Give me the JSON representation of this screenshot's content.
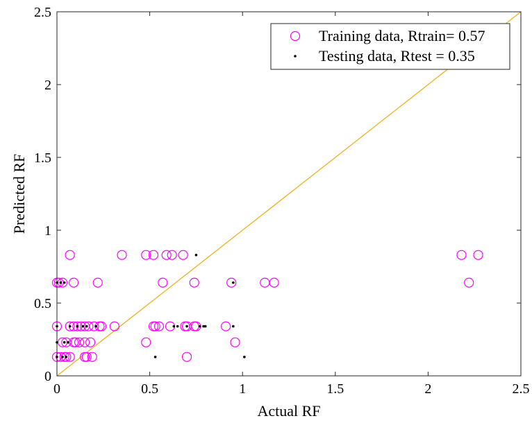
{
  "chart_data": {
    "type": "scatter",
    "title": "",
    "xlabel": "Actual RF",
    "ylabel": "Predicted RF",
    "xlim": [
      0,
      2.5
    ],
    "ylim": [
      0,
      2.5
    ],
    "xticks": [
      "0",
      "0.5",
      "1",
      "1.5",
      "2",
      "2.5"
    ],
    "yticks": [
      "0",
      "0.5",
      "1",
      "1.5",
      "2",
      "2.5"
    ],
    "grid": false,
    "legend_position": "top-right",
    "reference_line": {
      "from": [
        0,
        0
      ],
      "to": [
        2.5,
        2.5
      ],
      "color": "#EDB120"
    },
    "series": [
      {
        "name": "Training data, Rtrain= 0.57",
        "marker": "circle",
        "color": "#FF00FF",
        "points": [
          [
            0.0,
            0.64
          ],
          [
            0.01,
            0.64
          ],
          [
            0.03,
            0.64
          ],
          [
            0.09,
            0.64
          ],
          [
            0.22,
            0.64
          ],
          [
            0.57,
            0.64
          ],
          [
            0.74,
            0.64
          ],
          [
            0.94,
            0.64
          ],
          [
            1.12,
            0.64
          ],
          [
            1.17,
            0.64
          ],
          [
            2.22,
            0.64
          ],
          [
            0.07,
            0.83
          ],
          [
            0.35,
            0.83
          ],
          [
            0.48,
            0.83
          ],
          [
            0.52,
            0.83
          ],
          [
            0.59,
            0.83
          ],
          [
            0.62,
            0.83
          ],
          [
            0.68,
            0.83
          ],
          [
            2.18,
            0.83
          ],
          [
            2.27,
            0.83
          ],
          [
            0.0,
            0.34
          ],
          [
            0.07,
            0.34
          ],
          [
            0.09,
            0.34
          ],
          [
            0.11,
            0.34
          ],
          [
            0.13,
            0.34
          ],
          [
            0.15,
            0.34
          ],
          [
            0.17,
            0.34
          ],
          [
            0.2,
            0.34
          ],
          [
            0.23,
            0.34
          ],
          [
            0.24,
            0.34
          ],
          [
            0.31,
            0.34
          ],
          [
            0.52,
            0.34
          ],
          [
            0.53,
            0.34
          ],
          [
            0.55,
            0.34
          ],
          [
            0.61,
            0.34
          ],
          [
            0.69,
            0.34
          ],
          [
            0.7,
            0.34
          ],
          [
            0.74,
            0.34
          ],
          [
            0.75,
            0.34
          ],
          [
            0.91,
            0.34
          ],
          [
            0.03,
            0.23
          ],
          [
            0.05,
            0.23
          ],
          [
            0.09,
            0.23
          ],
          [
            0.1,
            0.23
          ],
          [
            0.12,
            0.23
          ],
          [
            0.15,
            0.23
          ],
          [
            0.18,
            0.23
          ],
          [
            0.48,
            0.23
          ],
          [
            0.96,
            0.23
          ],
          [
            0.0,
            0.13
          ],
          [
            0.02,
            0.13
          ],
          [
            0.04,
            0.13
          ],
          [
            0.05,
            0.13
          ],
          [
            0.07,
            0.13
          ],
          [
            0.15,
            0.13
          ],
          [
            0.16,
            0.13
          ],
          [
            0.19,
            0.13
          ],
          [
            0.7,
            0.13
          ]
        ]
      },
      {
        "name": "Testing data, Rtest = 0.35",
        "marker": "dot",
        "color": "#000000",
        "points": [
          [
            0.0,
            0.64
          ],
          [
            0.02,
            0.64
          ],
          [
            0.04,
            0.64
          ],
          [
            0.95,
            0.64
          ],
          [
            0.75,
            0.83
          ],
          [
            0.0,
            0.34
          ],
          [
            0.07,
            0.34
          ],
          [
            0.11,
            0.34
          ],
          [
            0.14,
            0.34
          ],
          [
            0.16,
            0.34
          ],
          [
            0.21,
            0.34
          ],
          [
            0.63,
            0.34
          ],
          [
            0.65,
            0.34
          ],
          [
            0.7,
            0.34
          ],
          [
            0.77,
            0.34
          ],
          [
            0.79,
            0.34
          ],
          [
            0.8,
            0.34
          ],
          [
            0.95,
            0.34
          ],
          [
            0.0,
            0.23
          ],
          [
            0.04,
            0.23
          ],
          [
            0.06,
            0.23
          ],
          [
            0.0,
            0.13
          ],
          [
            0.03,
            0.13
          ],
          [
            0.05,
            0.13
          ],
          [
            0.53,
            0.13
          ],
          [
            1.01,
            0.13
          ]
        ]
      }
    ]
  }
}
